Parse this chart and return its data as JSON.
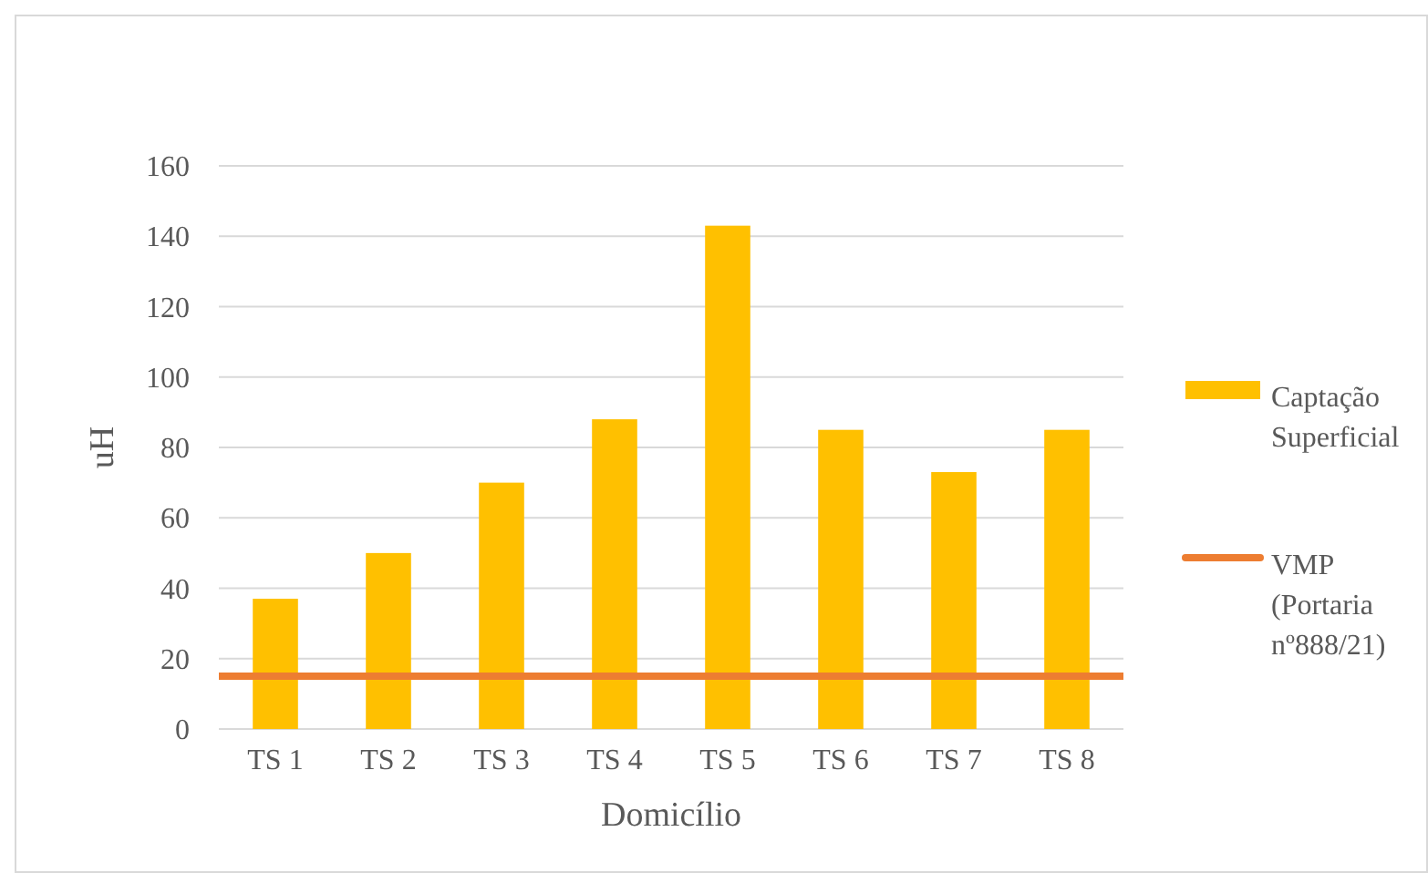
{
  "chart_data": {
    "type": "bar",
    "xlabel": "Domicílio",
    "ylabel": "uH",
    "categories": [
      "TS 1",
      "TS 2",
      "TS 3",
      "TS 4",
      "TS 5",
      "TS 6",
      "TS 7",
      "TS 8"
    ],
    "series": [
      {
        "name": "Captação Superficial",
        "color": "#ffc000",
        "values": [
          37,
          50,
          70,
          88,
          143,
          85,
          73,
          85
        ]
      }
    ],
    "ref_lines": [
      {
        "axis": "y",
        "value": 15,
        "label": "VMP (Portaria nº888/21)",
        "color": "#ed7d31"
      }
    ],
    "ylim": [
      0,
      160
    ],
    "yticks": [
      0,
      20,
      40,
      60,
      80,
      100,
      120,
      140,
      160
    ],
    "grid": "y",
    "legend": "right"
  }
}
